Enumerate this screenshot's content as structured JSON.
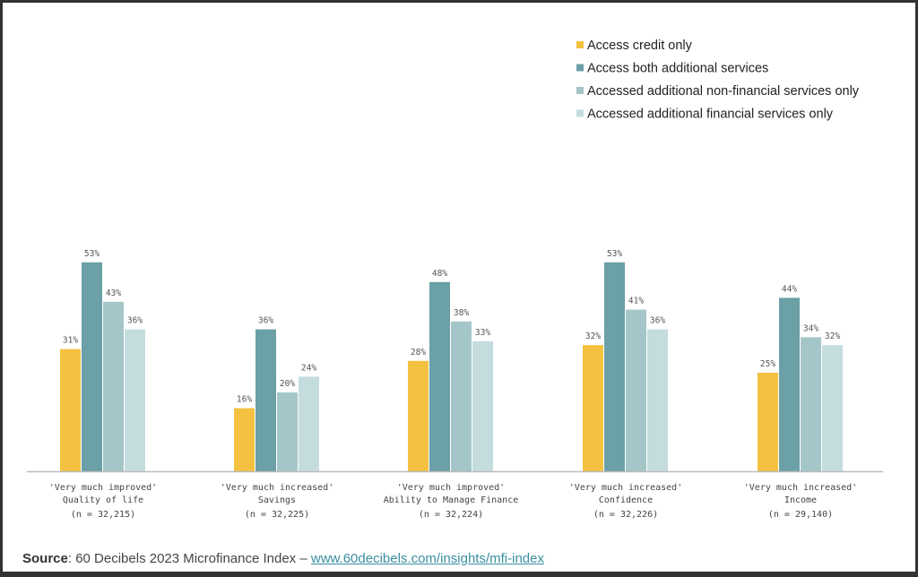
{
  "chart_data": {
    "type": "bar",
    "categories": [
      {
        "line1": "'Very much improved'",
        "line2": "Quality of life",
        "n": "(n = 32,215)"
      },
      {
        "line1": "'Very much increased'",
        "line2": "Savings",
        "n": "(n = 32,225)"
      },
      {
        "line1": "'Very much improved'",
        "line2": "Ability to Manage Finance",
        "n": "(n = 32,224)"
      },
      {
        "line1": "'Very much increased'",
        "line2": "Confidence",
        "n": "(n = 32,226)"
      },
      {
        "line1": "'Very much increased'",
        "line2": "Income",
        "n": "(n = 29,140)"
      }
    ],
    "series": [
      {
        "name": "Access credit only",
        "color": "#f4c141",
        "values": [
          31,
          16,
          28,
          32,
          25
        ]
      },
      {
        "name": "Access both additional services",
        "color": "#6aa0a6",
        "values": [
          53,
          36,
          48,
          53,
          44
        ]
      },
      {
        "name": "Accessed additional non-financial services only",
        "color": "#a5c6c8",
        "values": [
          43,
          20,
          38,
          41,
          34
        ]
      },
      {
        "name": "Accessed additional financial services only",
        "color": "#c5dcdf",
        "values": [
          36,
          24,
          33,
          36,
          32
        ]
      }
    ],
    "value_suffix": "%",
    "legend_position": "top-right",
    "grid": false,
    "ylim": [
      0,
      60
    ]
  },
  "source": {
    "label": "Source",
    "text": ": 60 Decibels 2023 Microfinance Index – ",
    "link": "www.60decibels.com/insights/mfi-index"
  }
}
